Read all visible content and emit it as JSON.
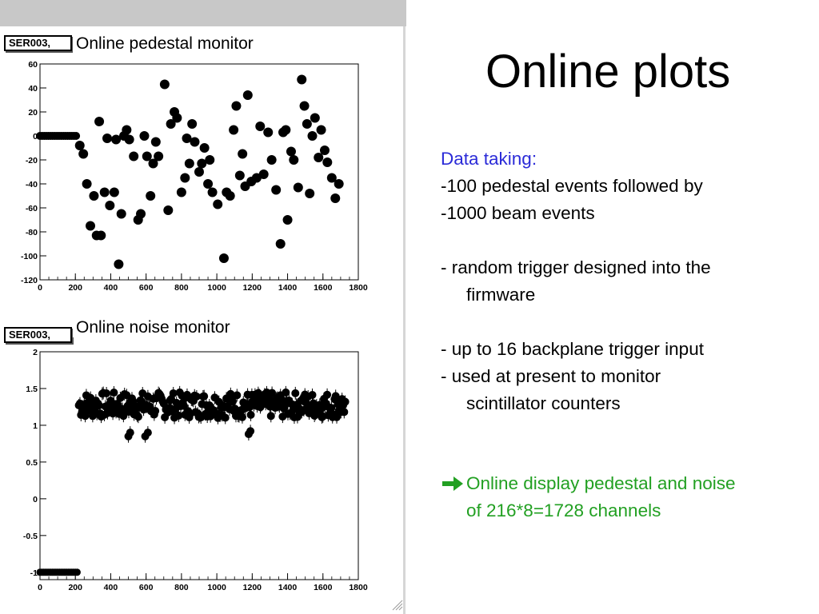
{
  "slide": {
    "title": "Online plots"
  },
  "bullets": {
    "heading": "Data taking:",
    "line1": "-100 pedestal events followed by",
    "line2": "-1000 beam events",
    "line3a": "- random trigger designed into the",
    "line3b": "firmware",
    "line4": "- up to 16 backplane trigger input",
    "line5a": "- used at present to monitor",
    "line5b": "scintillator counters",
    "arrow_icon": "right-arrow-icon",
    "conclusion_a": "Online display pedestal and noise",
    "conclusion_b": "of 216*8=1728 channels",
    "colors": {
      "heading": "#2b2bd8",
      "conclusion": "#22a022"
    }
  },
  "plots": {
    "pedestal": {
      "tag": "SER003,",
      "title": "Online pedestal monitor"
    },
    "noise": {
      "tag": "SER003,",
      "title": "Online noise monitor"
    }
  },
  "chart_data": [
    {
      "type": "scatter",
      "title": "Online pedestal monitor",
      "xlabel": "",
      "ylabel": "",
      "xlim": [
        0,
        1800
      ],
      "ylim": [
        -120,
        60
      ],
      "x_ticks": [
        "0",
        "200",
        "400",
        "600",
        "800",
        "1000",
        "1200",
        "1400",
        "1600",
        "1800"
      ],
      "y_ticks": [
        "60",
        "40",
        "20",
        "0",
        "-20",
        "-40",
        "-60",
        "-80",
        "-100",
        "-120"
      ],
      "grid": false,
      "flat": {
        "x_from": 0,
        "x_to": 215,
        "y": 0
      },
      "points": [
        [
          225,
          -8
        ],
        [
          245,
          -15
        ],
        [
          265,
          -40
        ],
        [
          285,
          -75
        ],
        [
          305,
          -50
        ],
        [
          320,
          -83
        ],
        [
          335,
          12
        ],
        [
          345,
          -83
        ],
        [
          365,
          -47
        ],
        [
          380,
          -2
        ],
        [
          395,
          -58
        ],
        [
          420,
          -47
        ],
        [
          430,
          -3
        ],
        [
          445,
          -107
        ],
        [
          460,
          -65
        ],
        [
          475,
          0
        ],
        [
          490,
          5
        ],
        [
          505,
          -3
        ],
        [
          530,
          -17
        ],
        [
          555,
          -70
        ],
        [
          570,
          -65
        ],
        [
          590,
          0
        ],
        [
          605,
          -17
        ],
        [
          625,
          -50
        ],
        [
          640,
          -23
        ],
        [
          655,
          -5
        ],
        [
          670,
          -17
        ],
        [
          705,
          43
        ],
        [
          725,
          -62
        ],
        [
          740,
          10
        ],
        [
          760,
          20
        ],
        [
          775,
          15
        ],
        [
          800,
          -47
        ],
        [
          820,
          -35
        ],
        [
          830,
          -2
        ],
        [
          845,
          -23
        ],
        [
          860,
          10
        ],
        [
          875,
          -5
        ],
        [
          900,
          -30
        ],
        [
          915,
          -23
        ],
        [
          930,
          -10
        ],
        [
          950,
          -40
        ],
        [
          960,
          -20
        ],
        [
          975,
          -47
        ],
        [
          1005,
          -57
        ],
        [
          1040,
          -102
        ],
        [
          1055,
          -47
        ],
        [
          1075,
          -50
        ],
        [
          1095,
          5
        ],
        [
          1110,
          25
        ],
        [
          1130,
          -33
        ],
        [
          1145,
          -15
        ],
        [
          1160,
          -42
        ],
        [
          1175,
          34
        ],
        [
          1195,
          -38
        ],
        [
          1225,
          -35
        ],
        [
          1245,
          8
        ],
        [
          1265,
          -32
        ],
        [
          1290,
          3
        ],
        [
          1310,
          -20
        ],
        [
          1335,
          -45
        ],
        [
          1360,
          -90
        ],
        [
          1375,
          3
        ],
        [
          1390,
          5
        ],
        [
          1400,
          -70
        ],
        [
          1420,
          -13
        ],
        [
          1435,
          -20
        ],
        [
          1460,
          -43
        ],
        [
          1480,
          47
        ],
        [
          1495,
          25
        ],
        [
          1510,
          10
        ],
        [
          1525,
          -48
        ],
        [
          1540,
          0
        ],
        [
          1555,
          15
        ],
        [
          1575,
          -18
        ],
        [
          1590,
          5
        ],
        [
          1610,
          -12
        ],
        [
          1625,
          -22
        ],
        [
          1650,
          -35
        ],
        [
          1670,
          -52
        ],
        [
          1690,
          -40
        ]
      ]
    },
    {
      "type": "scatter",
      "title": "Online noise monitor",
      "xlabel": "",
      "ylabel": "",
      "xlim": [
        0,
        1800
      ],
      "ylim": [
        -1.1,
        2
      ],
      "x_ticks": [
        "0",
        "200",
        "400",
        "600",
        "800",
        "1000",
        "1200",
        "1400",
        "1600",
        "1800"
      ],
      "y_ticks": [
        "2",
        "1.5",
        "1",
        "0.5",
        "0",
        "-0.5",
        "-1"
      ],
      "grid": false,
      "flat": {
        "x_from": 0,
        "x_to": 215,
        "y": -1
      },
      "band": {
        "x_from": 220,
        "x_to": 1730,
        "y_low": 1.1,
        "y_high": 1.45
      },
      "dips": [
        [
          500,
          0.85
        ],
        [
          510,
          0.9
        ],
        [
          595,
          0.85
        ],
        [
          610,
          0.9
        ],
        [
          1180,
          0.88
        ],
        [
          1190,
          0.92
        ]
      ]
    }
  ]
}
